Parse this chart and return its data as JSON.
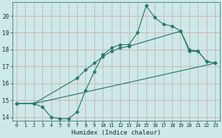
{
  "xlabel": "Humidex (Indice chaleur)",
  "bg_color": "#cce8e8",
  "grid_color": "#d4a0a0",
  "line_color": "#2a7a6a",
  "xlim": [
    -0.5,
    23.5
  ],
  "ylim": [
    13.8,
    20.8
  ],
  "yticks": [
    14,
    15,
    16,
    17,
    18,
    19,
    20
  ],
  "xticks": [
    0,
    1,
    2,
    3,
    4,
    5,
    6,
    7,
    8,
    9,
    10,
    11,
    12,
    13,
    14,
    15,
    16,
    17,
    18,
    19,
    20,
    21,
    22,
    23
  ],
  "line1_x": [
    0,
    2,
    3,
    4,
    5,
    6,
    7,
    8,
    9,
    10,
    11,
    12,
    13,
    14,
    15,
    16,
    17,
    18,
    19,
    20,
    21,
    22,
    23
  ],
  "line1_y": [
    14.8,
    14.8,
    14.6,
    14.0,
    13.9,
    13.9,
    14.3,
    15.6,
    16.7,
    17.7,
    18.1,
    18.3,
    18.3,
    19.0,
    20.6,
    19.9,
    19.5,
    19.4,
    19.1,
    18.0,
    17.9,
    17.3,
    17.2
  ],
  "line2_x": [
    0,
    2,
    7,
    8,
    9,
    10,
    11,
    12,
    13,
    19,
    20,
    21,
    22,
    23
  ],
  "line2_y": [
    14.8,
    14.8,
    16.3,
    16.8,
    17.2,
    17.6,
    17.9,
    18.1,
    18.2,
    19.1,
    17.9,
    17.9,
    17.3,
    17.2
  ],
  "line3_x": [
    0,
    2,
    23
  ],
  "line3_y": [
    14.8,
    14.8,
    17.2
  ]
}
